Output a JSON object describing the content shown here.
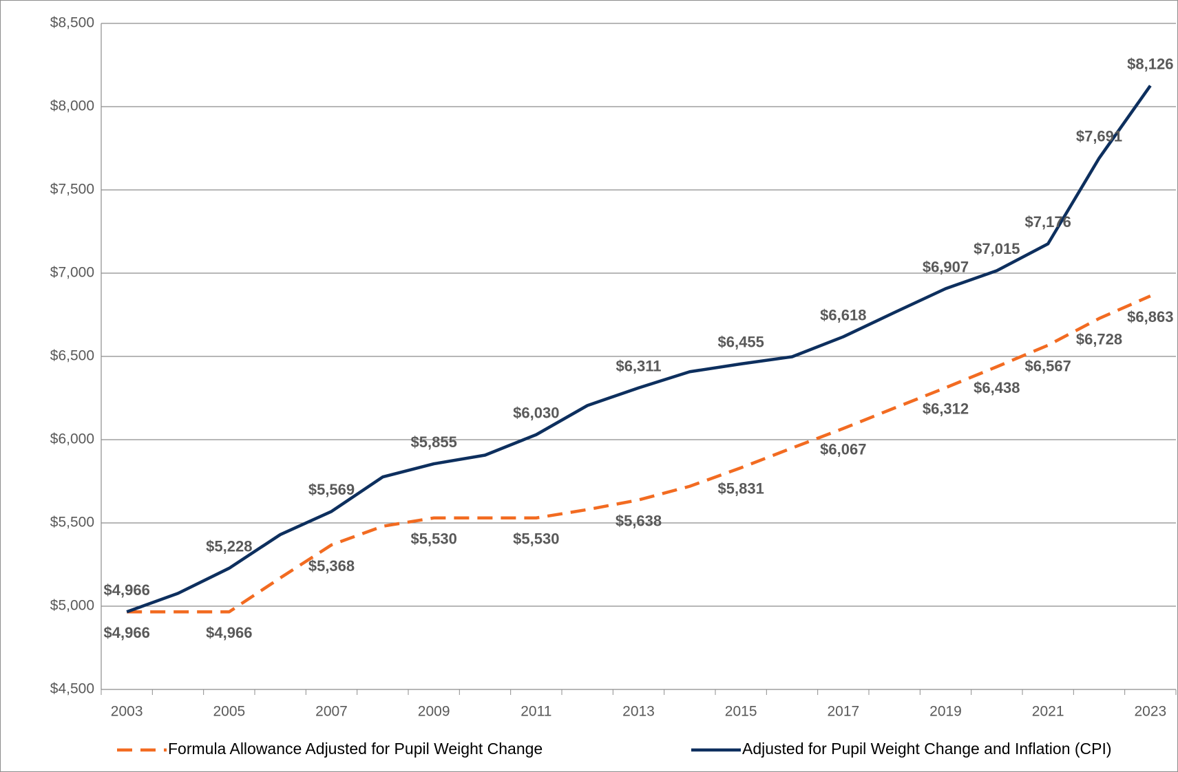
{
  "chart_data": {
    "type": "line",
    "categories": [
      "2003",
      null,
      "2005",
      null,
      "2007",
      null,
      "2009",
      null,
      "2011",
      null,
      "2013",
      null,
      "2015",
      null,
      "2017",
      null,
      "2019",
      null,
      "2021",
      null,
      "2023"
    ],
    "series": [
      {
        "name": "Formula Allowance Adjusted for Pupil Weight Change",
        "color": "#f26b21",
        "dashed": true,
        "values": [
          4966,
          4966,
          4966,
          5170,
          5368,
          5480,
          5530,
          5530,
          5530,
          5580,
          5638,
          5720,
          5831,
          5950,
          6067,
          6190,
          6312,
          6438,
          6567,
          6728,
          6863
        ],
        "value_labels": [
          "$4,966",
          null,
          "$4,966",
          null,
          "$5,368",
          null,
          "$5,530",
          null,
          "$5,530",
          null,
          "$5,638",
          null,
          "$5,831",
          null,
          "$6,067",
          null,
          "$6,312",
          "$6,438",
          "$6,567",
          "$6,728",
          "$6,863"
        ]
      },
      {
        "name": "Adjusted for Pupil Weight Change and Inflation (CPI)",
        "color": "#0d2f5e",
        "dashed": false,
        "values": [
          4966,
          5077,
          5228,
          5430,
          5569,
          5776,
          5855,
          5907,
          6030,
          6205,
          6311,
          6408,
          6455,
          6498,
          6618,
          6764,
          6907,
          7015,
          7176,
          7691,
          8126
        ],
        "value_labels": [
          "$4,966",
          null,
          "$5,228",
          null,
          "$5,569",
          null,
          "$5,855",
          null,
          "$6,030",
          null,
          "$6,311",
          null,
          "$6,455",
          null,
          "$6,618",
          null,
          "$6,907",
          "$7,015",
          "$7,176",
          "$7,691",
          "$8,126"
        ]
      }
    ],
    "ylim": [
      4500,
      8500
    ],
    "yticks": [
      {
        "value": 4500,
        "label": "$4,500"
      },
      {
        "value": 5000,
        "label": "$5,000"
      },
      {
        "value": 5500,
        "label": "$5,500"
      },
      {
        "value": 6000,
        "label": "$6,000"
      },
      {
        "value": 6500,
        "label": "$6,500"
      },
      {
        "value": 7000,
        "label": "$7,000"
      },
      {
        "value": 7500,
        "label": "$7,500"
      },
      {
        "value": 8000,
        "label": "$8,000"
      },
      {
        "value": 8500,
        "label": "$8,500"
      }
    ],
    "grid": true,
    "legend": "bottom"
  }
}
